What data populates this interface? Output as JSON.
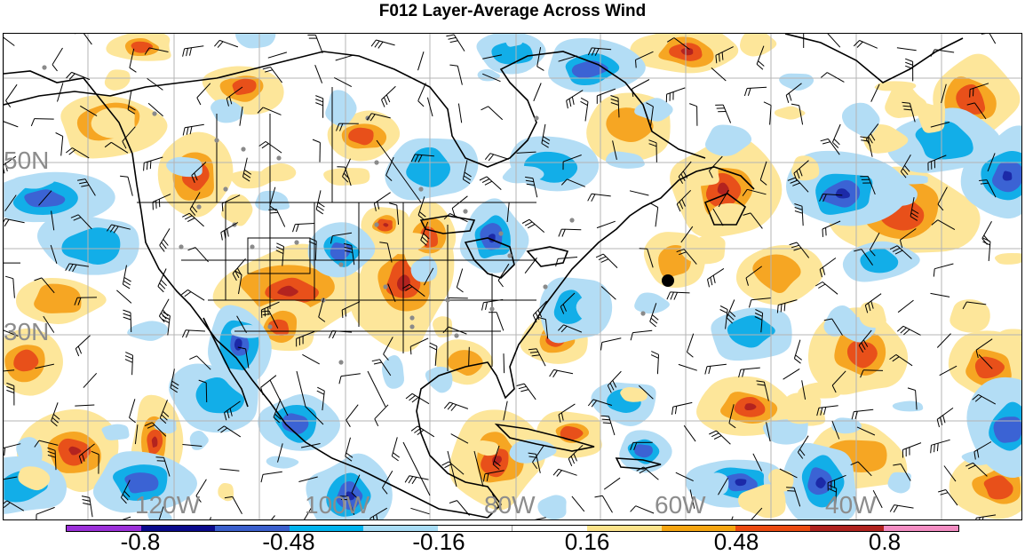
{
  "title": "F012 Layer-Average Across Wind",
  "map": {
    "latitude_labels": [
      "50N",
      "30N"
    ],
    "longitude_labels": [
      "120W",
      "100W",
      "80W",
      "60W",
      "40W"
    ],
    "field": "Layer-average across wind",
    "forecast_hour": "F012",
    "station_dots": "grey",
    "marker": "black-dot",
    "wind_barbs": "black"
  },
  "colorbar": {
    "colors": [
      "#9b30d9",
      "#0a0a8c",
      "#3a5fcd",
      "#00b3ee",
      "#a8dcf5",
      "#ffffff",
      "#ffffff",
      "#fbe38a",
      "#f5a511",
      "#eb4a10",
      "#b0221e",
      "#f28cc2"
    ],
    "labels": [
      "-0.8",
      "-0.48",
      "-0.16",
      "0.16",
      "0.48",
      "0.8"
    ]
  },
  "palette": {
    "dark_blue": "#1c2aa8",
    "blue": "#3b63d4",
    "cyan": "#12aee8",
    "light_blue": "#b3ddf5",
    "light_yellow": "#fde69a",
    "orange": "#f6a623",
    "red_orange": "#e8501a",
    "dark_red": "#b3231f"
  }
}
